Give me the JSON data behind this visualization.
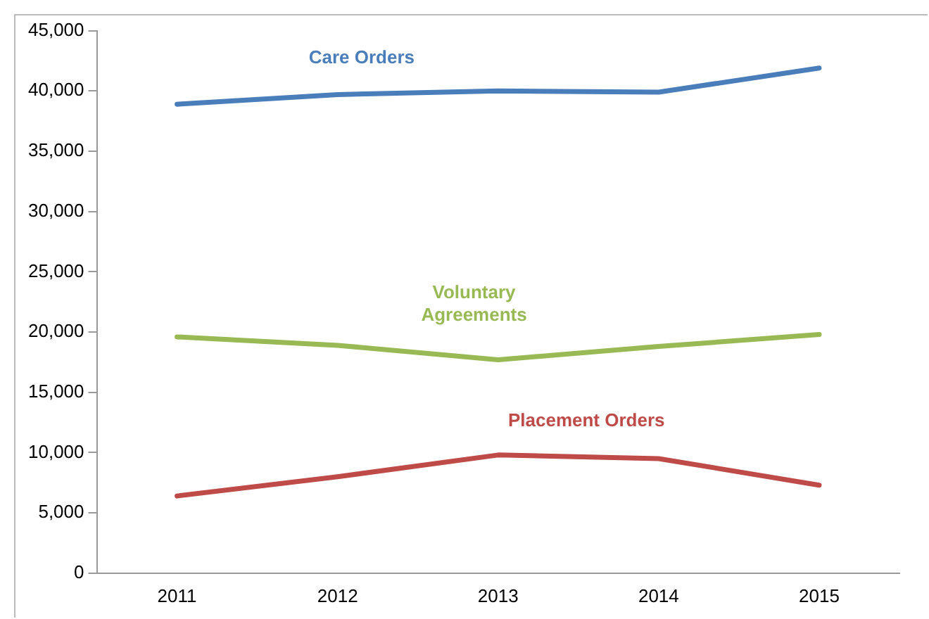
{
  "chart_data": {
    "type": "line",
    "categories": [
      "2011",
      "2012",
      "2013",
      "2014",
      "2015"
    ],
    "series": [
      {
        "name": "Care Orders",
        "color": "#4a7ebb",
        "values": [
          38900,
          39700,
          40000,
          39900,
          41900
        ]
      },
      {
        "name": "Voluntary Agreements",
        "color": "#98b954",
        "values": [
          19600,
          18900,
          17700,
          18800,
          19800
        ]
      },
      {
        "name": "Placement Orders",
        "color": "#be4b48",
        "values": [
          6400,
          8000,
          9800,
          9500,
          7300
        ]
      }
    ],
    "ylim": [
      0,
      45000
    ],
    "yticks": [
      0,
      {
        "value": 5000,
        "label": "5,000"
      },
      {
        "value": 10000,
        "label": "10,000"
      },
      {
        "value": 15000,
        "label": "15,000"
      },
      {
        "value": 20000,
        "label": "20,000"
      },
      {
        "value": 25000,
        "label": "25,000"
      },
      {
        "value": 30000,
        "label": "30,000"
      },
      {
        "value": 35000,
        "label": "35,000"
      },
      {
        "value": 40000,
        "label": "40,000"
      },
      {
        "value": 45000,
        "label": "45,000"
      }
    ],
    "grid": false,
    "legend": false,
    "marker": "none",
    "line_style": "solid"
  }
}
